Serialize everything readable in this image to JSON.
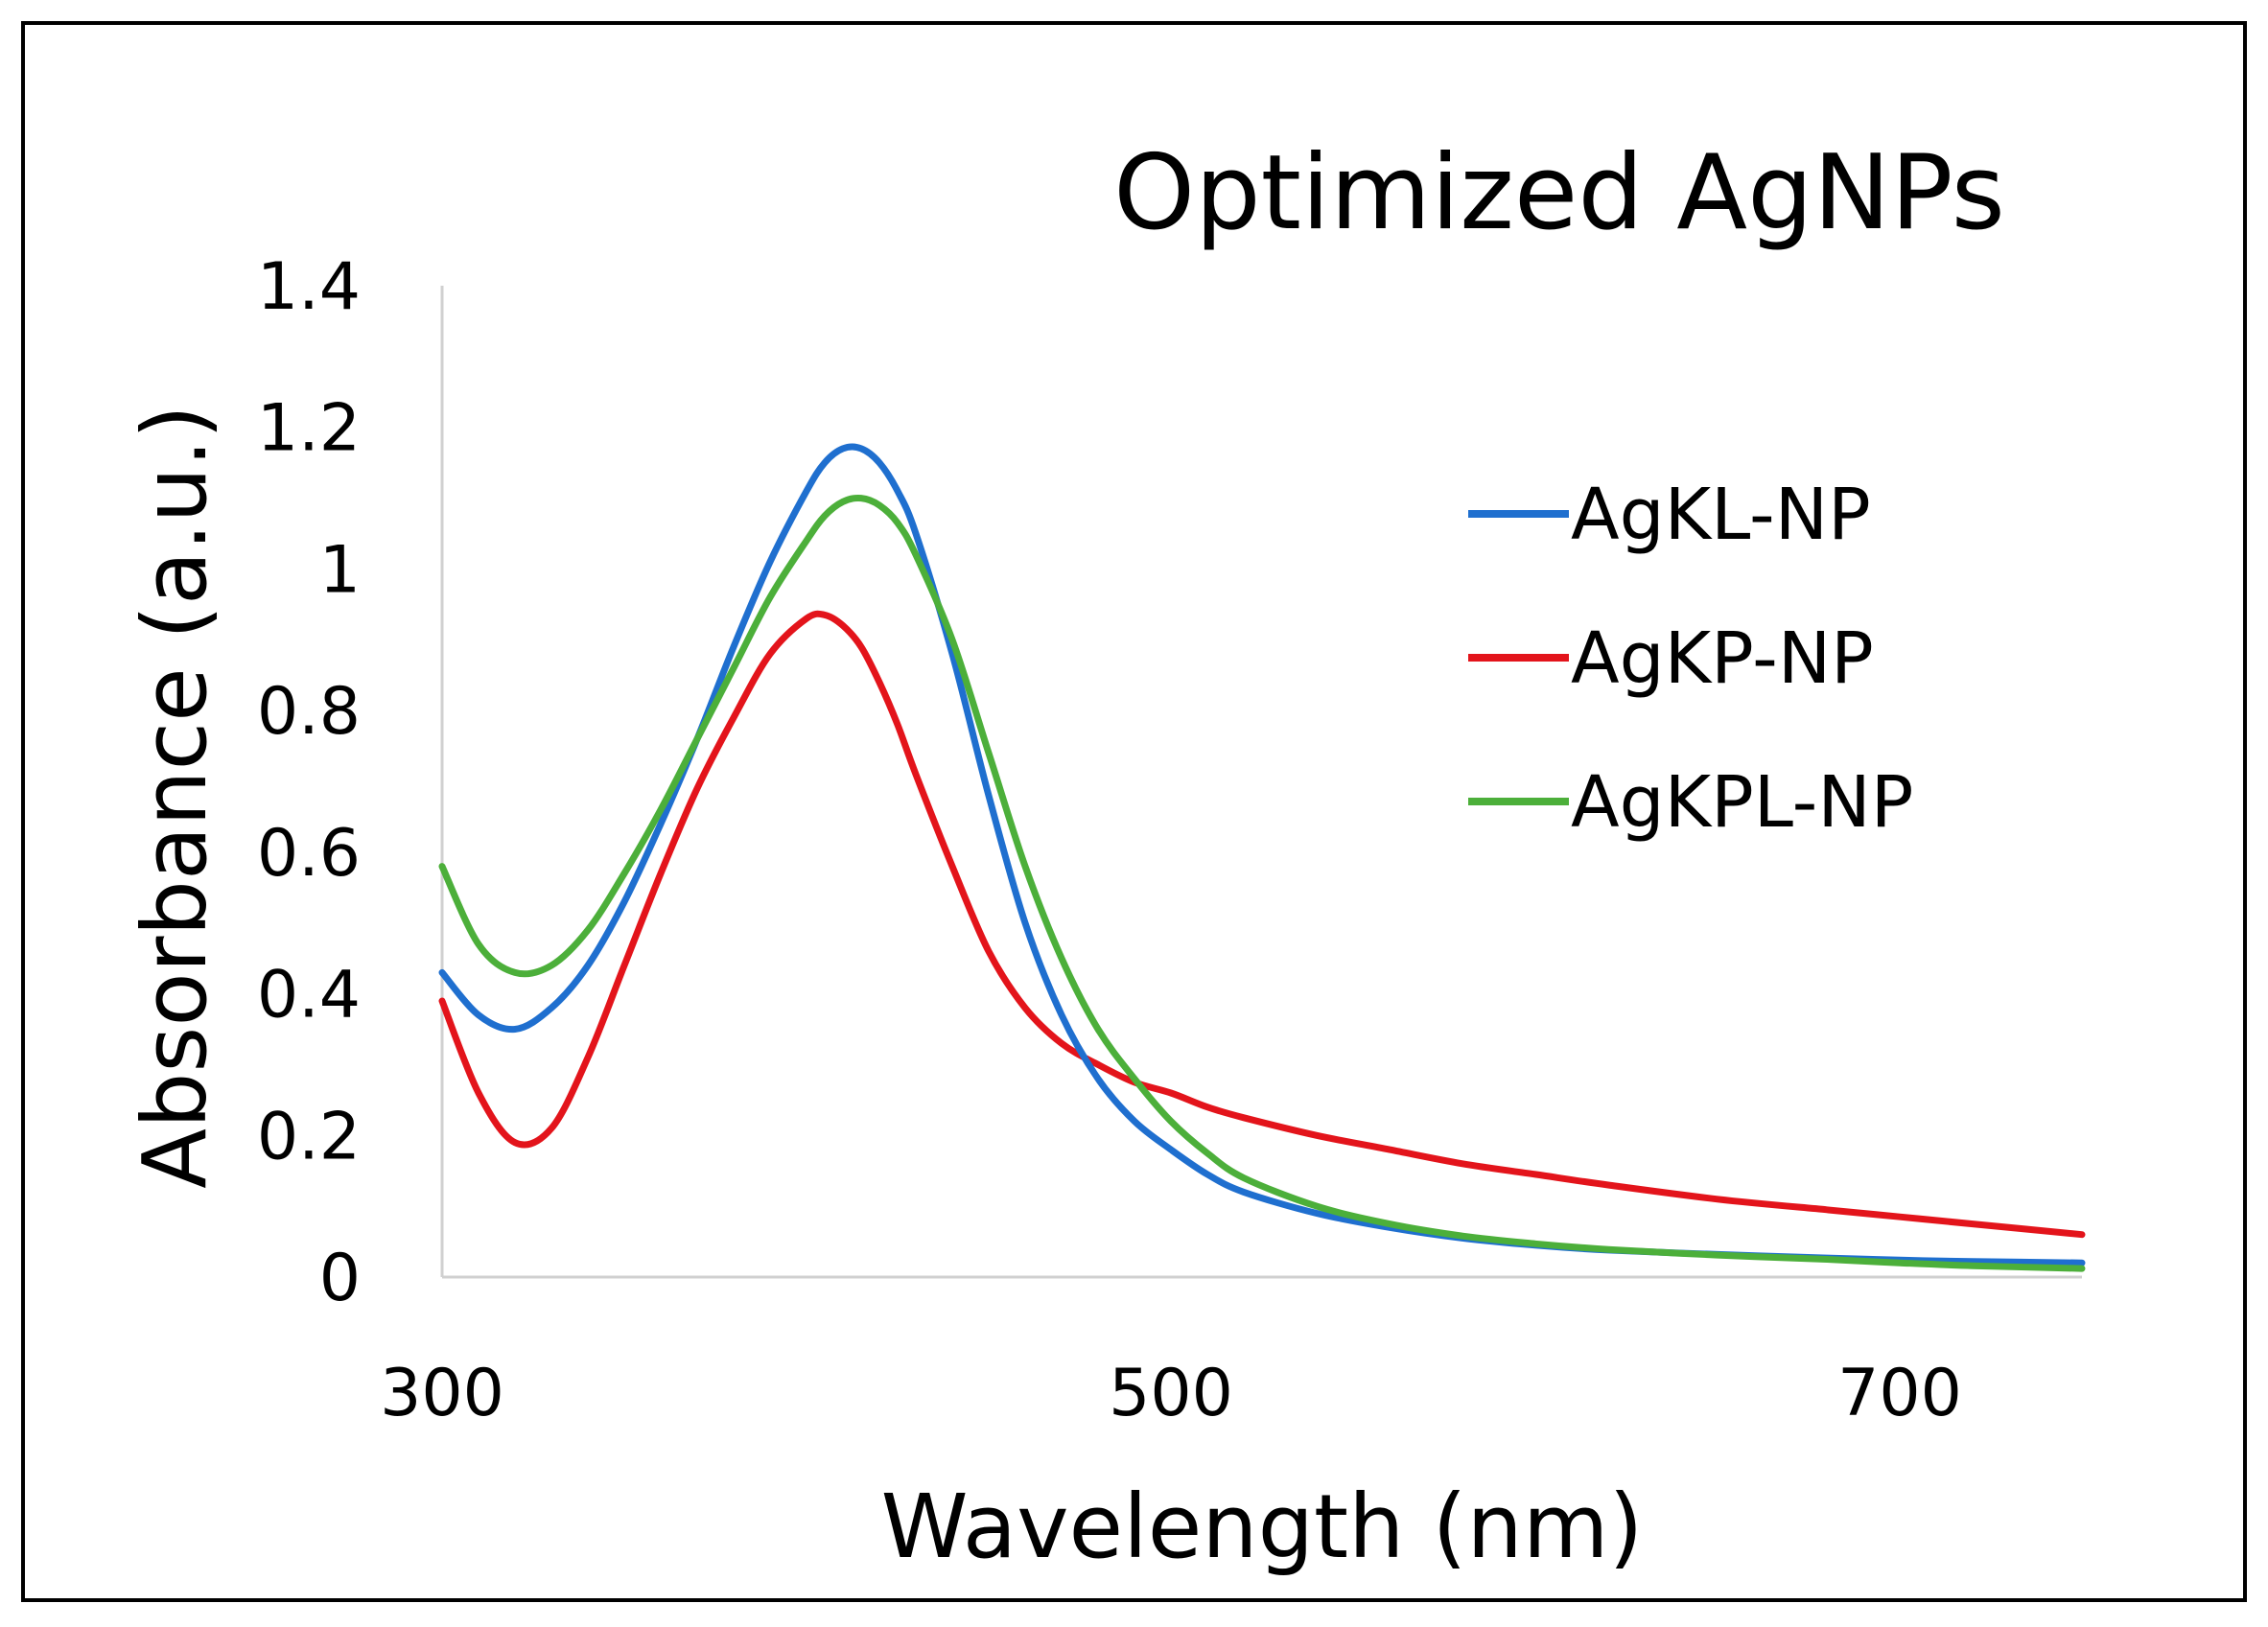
{
  "chart_data": {
    "type": "line",
    "title": "Optimized AgNPs",
    "xlabel": "Wavelength (nm)",
    "ylabel": "Absorbance (a.u.)",
    "xlim": [
      300,
      750
    ],
    "ylim": [
      0,
      1.4
    ],
    "x_ticks": [
      300,
      500,
      700
    ],
    "x_tick_labels": [
      "300",
      "500",
      "700"
    ],
    "y_ticks": [
      0,
      0.2,
      0.4,
      0.6,
      0.8,
      1,
      1.2,
      1.4
    ],
    "y_tick_labels": [
      "0",
      "0.2",
      "0.4",
      "0.6",
      "0.8",
      "1",
      "1.2",
      "1.4"
    ],
    "grid": false,
    "legend_position": "top-right",
    "x": [
      300,
      310,
      320,
      330,
      340,
      350,
      360,
      370,
      380,
      390,
      400,
      405,
      410,
      415,
      420,
      425,
      430,
      440,
      450,
      460,
      470,
      480,
      490,
      500,
      510,
      520,
      540,
      560,
      580,
      600,
      620,
      650,
      680,
      700,
      720,
      750
    ],
    "series": [
      {
        "name": "AgKL-NP",
        "color": "#1f6fcf",
        "values": [
          0.43,
          0.37,
          0.35,
          0.38,
          0.44,
          0.53,
          0.64,
          0.76,
          0.89,
          1.01,
          1.11,
          1.15,
          1.17,
          1.17,
          1.15,
          1.11,
          1.05,
          0.88,
          0.68,
          0.5,
          0.37,
          0.28,
          0.22,
          0.18,
          0.145,
          0.12,
          0.09,
          0.07,
          0.055,
          0.045,
          0.038,
          0.032,
          0.027,
          0.024,
          0.022,
          0.02
        ]
      },
      {
        "name": "AgKP-NP",
        "color": "#e3141b",
        "values": [
          0.39,
          0.26,
          0.19,
          0.21,
          0.31,
          0.44,
          0.57,
          0.69,
          0.79,
          0.88,
          0.93,
          0.935,
          0.92,
          0.89,
          0.84,
          0.78,
          0.71,
          0.58,
          0.46,
          0.38,
          0.33,
          0.3,
          0.275,
          0.26,
          0.24,
          0.225,
          0.2,
          0.18,
          0.16,
          0.145,
          0.13,
          0.11,
          0.095,
          0.085,
          0.075,
          0.06
        ]
      },
      {
        "name": "AgKPL-NP",
        "color": "#4caf3a",
        "values": [
          0.58,
          0.47,
          0.43,
          0.44,
          0.49,
          0.57,
          0.66,
          0.76,
          0.86,
          0.96,
          1.04,
          1.075,
          1.095,
          1.1,
          1.09,
          1.065,
          1.02,
          0.9,
          0.74,
          0.58,
          0.45,
          0.35,
          0.28,
          0.22,
          0.175,
          0.14,
          0.1,
          0.075,
          0.058,
          0.047,
          0.039,
          0.031,
          0.025,
          0.02,
          0.016,
          0.012
        ]
      }
    ]
  }
}
